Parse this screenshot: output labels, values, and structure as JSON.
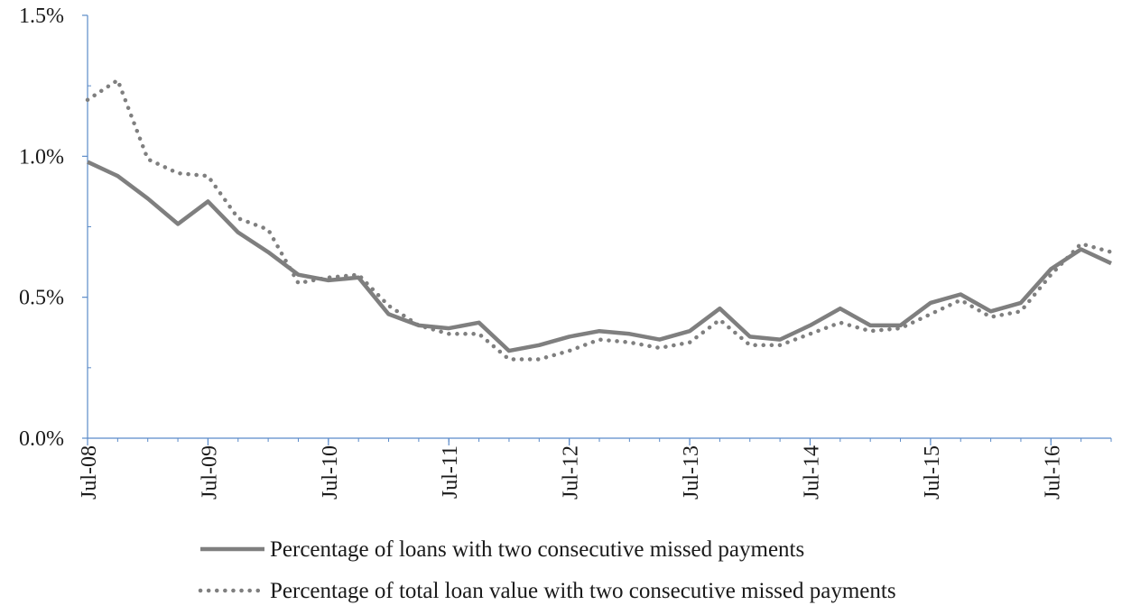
{
  "chart_data": {
    "type": "line",
    "title": "",
    "xlabel": "",
    "ylabel": "",
    "ylim": [
      0,
      1.5
    ],
    "y_ticks": [
      "0.0%",
      "0.5%",
      "1.0%",
      "1.5%"
    ],
    "y_tick_values": [
      0,
      0.5,
      1.0,
      1.5
    ],
    "x_ticks": [
      "Jul-08",
      "Jul-09",
      "Jul-10",
      "Jul-11",
      "Jul-12",
      "Jul-13",
      "Jul-14",
      "Jul-15",
      "Jul-16"
    ],
    "x_tick_dates": [
      "2008-07",
      "2009-07",
      "2010-07",
      "2011-07",
      "2012-07",
      "2013-07",
      "2014-07",
      "2015-07",
      "2016-07"
    ],
    "x": [
      "2008-07",
      "2008-10",
      "2009-01",
      "2009-04",
      "2009-07",
      "2009-10",
      "2010-01",
      "2010-04",
      "2010-07",
      "2010-10",
      "2011-01",
      "2011-04",
      "2011-07",
      "2011-10",
      "2012-01",
      "2012-04",
      "2012-07",
      "2012-10",
      "2013-01",
      "2013-04",
      "2013-07",
      "2013-10",
      "2014-01",
      "2014-04",
      "2014-07",
      "2014-10",
      "2015-01",
      "2015-04",
      "2015-07",
      "2015-10",
      "2016-01",
      "2016-04",
      "2016-07",
      "2016-10",
      "2017-01"
    ],
    "grid": false,
    "legend_position": "bottom",
    "series": [
      {
        "name": "Percentage of loans with two consecutive missed payments",
        "style": "solid",
        "color": "#7f7f7f",
        "values": [
          0.98,
          0.93,
          0.85,
          0.76,
          0.84,
          0.73,
          0.66,
          0.58,
          0.56,
          0.57,
          0.44,
          0.4,
          0.39,
          0.41,
          0.31,
          0.33,
          0.36,
          0.38,
          0.37,
          0.35,
          0.38,
          0.46,
          0.36,
          0.35,
          0.4,
          0.46,
          0.4,
          0.4,
          0.48,
          0.51,
          0.45,
          0.48,
          0.6,
          0.67,
          0.62
        ]
      },
      {
        "name": "Percentage of total loan value with two consecutive missed payments",
        "style": "dotted",
        "color": "#7f7f7f",
        "values": [
          1.2,
          1.27,
          0.99,
          0.94,
          0.93,
          0.78,
          0.74,
          0.55,
          0.57,
          0.58,
          0.47,
          0.4,
          0.37,
          0.37,
          0.28,
          0.28,
          0.31,
          0.35,
          0.34,
          0.32,
          0.34,
          0.42,
          0.33,
          0.33,
          0.37,
          0.41,
          0.38,
          0.39,
          0.44,
          0.49,
          0.43,
          0.45,
          0.58,
          0.69,
          0.66
        ]
      }
    ]
  }
}
